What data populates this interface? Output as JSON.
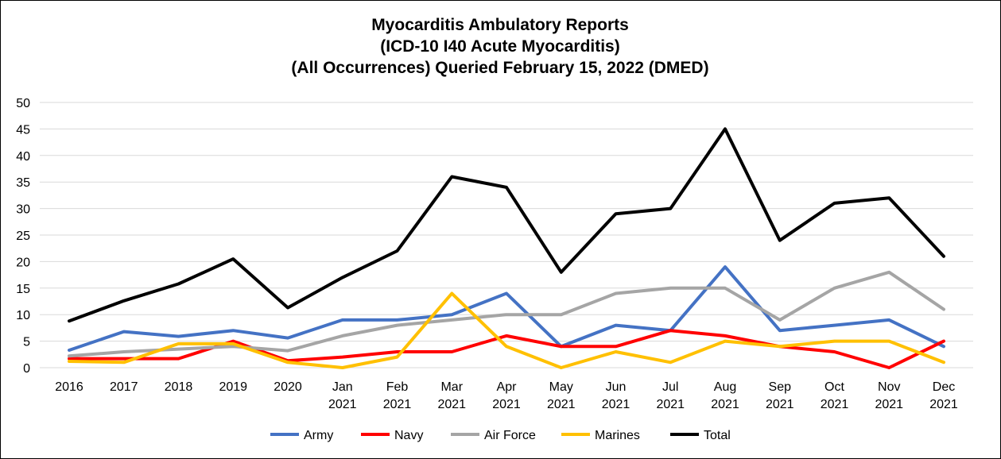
{
  "chart_data": {
    "type": "line",
    "title": [
      "Myocarditis Ambulatory Reports",
      "(ICD-10 I40 Acute Myocarditis)",
      "(All Occurrences) Queried February 15, 2022 (DMED)"
    ],
    "xlabel": "",
    "ylabel": "",
    "ylim": [
      0,
      50
    ],
    "yticks": [
      0,
      5,
      10,
      15,
      20,
      25,
      30,
      35,
      40,
      45,
      50
    ],
    "grid": true,
    "legend_position": "bottom",
    "categories": [
      [
        "2016"
      ],
      [
        "2017"
      ],
      [
        "2018"
      ],
      [
        "2019"
      ],
      [
        "2020"
      ],
      [
        "Jan",
        "2021"
      ],
      [
        "Feb",
        "2021"
      ],
      [
        "Mar",
        "2021"
      ],
      [
        "Apr",
        "2021"
      ],
      [
        "May",
        "2021"
      ],
      [
        "Jun",
        "2021"
      ],
      [
        "Jul",
        "2021"
      ],
      [
        "Aug",
        "2021"
      ],
      [
        "Sep",
        "2021"
      ],
      [
        "Oct",
        "2021"
      ],
      [
        "Nov",
        "2021"
      ],
      [
        "Dec",
        "2021"
      ]
    ],
    "series": [
      {
        "name": "Army",
        "color": "#4472C4",
        "values": [
          3.3,
          6.8,
          5.9,
          7,
          5.6,
          9,
          9,
          10,
          14,
          4,
          8,
          7,
          19,
          7,
          8,
          9,
          4
        ]
      },
      {
        "name": "Navy",
        "color": "#FF0000",
        "values": [
          1.7,
          1.7,
          1.7,
          5,
          1.3,
          2,
          3,
          3,
          6,
          4,
          4,
          7,
          6,
          4,
          3,
          0,
          5
        ]
      },
      {
        "name": "Air Force",
        "color": "#A5A5A5",
        "values": [
          2.2,
          3,
          3.5,
          4,
          3.2,
          6,
          8,
          9,
          10,
          10,
          14,
          15,
          15,
          9,
          15,
          18,
          11
        ]
      },
      {
        "name": "Marines",
        "color": "#FFC000",
        "values": [
          1.2,
          1,
          4.5,
          4.5,
          1,
          0,
          2,
          14,
          4,
          0,
          3,
          1,
          5,
          4,
          5,
          5,
          1
        ]
      },
      {
        "name": "Total",
        "color": "#000000",
        "values": [
          8.8,
          12.6,
          15.8,
          20.5,
          11.3,
          17,
          22,
          36,
          34,
          18,
          29,
          30,
          45,
          24,
          31,
          32,
          21
        ]
      }
    ]
  }
}
